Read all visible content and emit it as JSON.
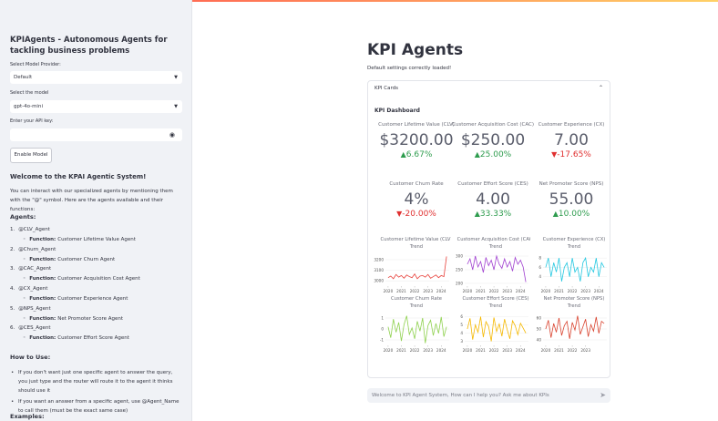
{
  "sidebar": {
    "title": "KPIAgents - Autonomous Agents for tackling business problems",
    "provider_label": "Select Model Provider:",
    "provider_value": "Default",
    "model_label": "Select the model",
    "model_value": "gpt-4o-mini",
    "api_key_label": "Enter your API key:",
    "button": "Enable Model",
    "welcome_heading": "Welcome to the KPAI Agentic System!",
    "intro": "You can interact with our specialized agents by mentioning them with the \"@\" symbol. Here are the agents available and their functions:",
    "agents_heading": "Agents:",
    "function_label": "Function:",
    "agents": [
      {
        "name": "@CLV_Agent",
        "function": "Customer Lifetime Value Agent"
      },
      {
        "name": "@Churn_Agent",
        "function": "Customer Churn Agent"
      },
      {
        "name": "@CAC_Agent",
        "function": "Customer Acquisition Cost Agent"
      },
      {
        "name": "@CX_Agent",
        "function": "Customer Experience Agent"
      },
      {
        "name": "@NPS_Agent",
        "function": "Net Promoter Score Agent"
      },
      {
        "name": "@CES_Agent",
        "function": "Customer Effort Score Agent"
      }
    ],
    "how_heading": "How to Use:",
    "how_items": [
      "If you don't want just one specific agent to answer the query, you just type and the router will route it to the agent it thinks should use it",
      "If you want an answer from a specific agent, use @Agent_Name to call them (must be the exact same case)"
    ],
    "examples_heading": "Examples:"
  },
  "main": {
    "title": "KPI Agents",
    "status": "Default settings correctly loaded!",
    "expander_label": "KPI Cards",
    "dashboard_title": "KPI Dashboard",
    "cards": [
      {
        "label": "Customer Lifetime Value (CLV)",
        "value": "$3200.00",
        "delta": "6.67%",
        "direction": "up"
      },
      {
        "label": "Customer Acquisition Cost (CAC)",
        "value": "$250.00",
        "delta": "25.00%",
        "direction": "up"
      },
      {
        "label": "Customer Experience (CX)",
        "value": "7.00",
        "delta": "-17.65%",
        "direction": "down"
      },
      {
        "label": "Customer Churn Rate",
        "value": "4%",
        "delta": "-20.00%",
        "direction": "down"
      },
      {
        "label": "Customer Effort Score (CES)",
        "value": "4.00",
        "delta": "33.33%",
        "direction": "up"
      },
      {
        "label": "Net Promoter Score (NPS)",
        "value": "55.00",
        "delta": "10.00%",
        "direction": "up"
      }
    ]
  },
  "trend_charts": [
    {
      "type": "line",
      "title": [
        "Customer Lifetime Value (CLV)",
        "Trend"
      ],
      "color": "#e8423c",
      "xlim": [
        2019.8,
        2024.6
      ],
      "xticks": [
        2020,
        2021,
        2022,
        2023,
        2024
      ],
      "ylim": [
        2950,
        3260
      ],
      "yticks": [
        3000,
        3100,
        3200
      ],
      "x": [
        2020,
        2020.2,
        2020.4,
        2020.6,
        2020.8,
        2021,
        2021.2,
        2021.4,
        2021.6,
        2021.8,
        2022,
        2022.2,
        2022.4,
        2022.6,
        2022.8,
        2023,
        2023.2,
        2023.4,
        2023.6,
        2023.8,
        2024,
        2024.2,
        2024.4
      ],
      "values": [
        3030,
        3045,
        3020,
        3060,
        3035,
        3050,
        3025,
        3055,
        3040,
        3030,
        3065,
        3020,
        3045,
        3050,
        3035,
        3060,
        3025,
        3040,
        3055,
        3030,
        3050,
        3040,
        3230
      ]
    },
    {
      "type": "line",
      "title": [
        "Customer Acquisition Cost (CAC)",
        "Trend"
      ],
      "color": "#a040d0",
      "xlim": [
        2019.8,
        2024.6
      ],
      "xticks": [
        2020,
        2021,
        2022,
        2023,
        2024
      ],
      "ylim": [
        190,
        310
      ],
      "yticks": [
        200,
        250,
        300
      ],
      "x": [
        2020,
        2020.2,
        2020.4,
        2020.6,
        2020.8,
        2021,
        2021.2,
        2021.4,
        2021.6,
        2021.8,
        2022,
        2022.2,
        2022.4,
        2022.6,
        2022.8,
        2023,
        2023.2,
        2023.4,
        2023.6,
        2023.8,
        2024,
        2024.2,
        2024.4
      ],
      "values": [
        270,
        290,
        250,
        300,
        260,
        280,
        240,
        295,
        265,
        285,
        250,
        300,
        270,
        255,
        290,
        260,
        280,
        245,
        295,
        270,
        285,
        260,
        205
      ]
    },
    {
      "type": "line",
      "title": [
        "Customer Experience (CX)",
        "Trend"
      ],
      "color": "#22c7e0",
      "xlim": [
        2019.8,
        2024.6
      ],
      "xticks": [
        2020,
        2021,
        2022,
        2023,
        2024
      ],
      "ylim": [
        2,
        9
      ],
      "yticks": [
        4,
        6,
        8
      ],
      "x": [
        2020,
        2020.2,
        2020.4,
        2020.6,
        2020.8,
        2021,
        2021.2,
        2021.4,
        2021.6,
        2021.8,
        2022,
        2022.2,
        2022.4,
        2022.6,
        2022.8,
        2023,
        2023.2,
        2023.4,
        2023.6,
        2023.8,
        2024,
        2024.2,
        2024.4
      ],
      "values": [
        6,
        8,
        4,
        7,
        5,
        8,
        3,
        6,
        7,
        4,
        8,
        5,
        6,
        3,
        7,
        8,
        4,
        6,
        5,
        8,
        4,
        7,
        6
      ]
    },
    {
      "type": "line",
      "title": [
        "Customer Churn Rate",
        "Trend"
      ],
      "color": "#8fd14f",
      "xlim": [
        2019.8,
        2024.6
      ],
      "xticks": [
        2020,
        2021,
        2022,
        2023,
        2024
      ],
      "ylim": [
        -1.5,
        1.5
      ],
      "yticks": [
        -1,
        0,
        1
      ],
      "x": [
        2020,
        2020.2,
        2020.4,
        2020.6,
        2020.8,
        2021,
        2021.2,
        2021.4,
        2021.6,
        2021.8,
        2022,
        2022.2,
        2022.4,
        2022.6,
        2022.8,
        2023,
        2023.2,
        2023.4,
        2023.6,
        2023.8,
        2024,
        2024.2,
        2024.4
      ],
      "values": [
        0.2,
        -0.8,
        0.9,
        -0.3,
        0.6,
        -1.1,
        0.4,
        1.2,
        -0.5,
        0.1,
        -0.9,
        0.7,
        -0.2,
        1.0,
        -1.3,
        0.3,
        0.8,
        -0.6,
        0.5,
        -0.4,
        1.1,
        -0.7,
        0.2
      ]
    },
    {
      "type": "line",
      "title": [
        "Customer Effort Score (CES)",
        "Trend"
      ],
      "color": "#f5b800",
      "xlim": [
        2019.8,
        2024.6
      ],
      "xticks": [
        2020,
        2021,
        2022,
        2023,
        2024
      ],
      "ylim": [
        2.5,
        6.5
      ],
      "yticks": [
        3,
        4,
        5,
        6
      ],
      "x": [
        2020,
        2020.2,
        2020.4,
        2020.6,
        2020.8,
        2021,
        2021.2,
        2021.4,
        2021.6,
        2021.8,
        2022,
        2022.2,
        2022.4,
        2022.6,
        2022.8,
        2023,
        2023.2,
        2023.4,
        2023.6,
        2023.8,
        2024,
        2024.2,
        2024.4
      ],
      "values": [
        4.5,
        5.8,
        3.2,
        5,
        4.1,
        6,
        3.5,
        5.4,
        4.8,
        3,
        5.9,
        4.2,
        5.1,
        3.6,
        5.7,
        4.4,
        3.3,
        5.5,
        4.9,
        3.8,
        5.2,
        4.6,
        4
      ]
    },
    {
      "type": "line",
      "title": [
        "Net Promoter Score (NPS)",
        "Trend"
      ],
      "color": "#d9432f",
      "xlim": [
        2019.8,
        2024.6
      ],
      "xticks": [
        2020,
        2021,
        2022,
        2023
      ],
      "ylim": [
        35,
        65
      ],
      "yticks": [
        40,
        50,
        60
      ],
      "x": [
        2020,
        2020.2,
        2020.4,
        2020.6,
        2020.8,
        2021,
        2021.2,
        2021.4,
        2021.6,
        2021.8,
        2022,
        2022.2,
        2022.4,
        2022.6,
        2022.8,
        2023,
        2023.2,
        2023.4,
        2023.6,
        2023.8,
        2024,
        2024.2,
        2024.4
      ],
      "values": [
        50,
        58,
        42,
        55,
        47,
        60,
        44,
        53,
        57,
        41,
        56,
        49,
        62,
        45,
        52,
        59,
        43,
        54,
        48,
        61,
        46,
        57,
        55
      ]
    }
  ],
  "chat_input_placeholder": "Welcome to KPI Agent System, How can I help you? Ask me about KPIs"
}
